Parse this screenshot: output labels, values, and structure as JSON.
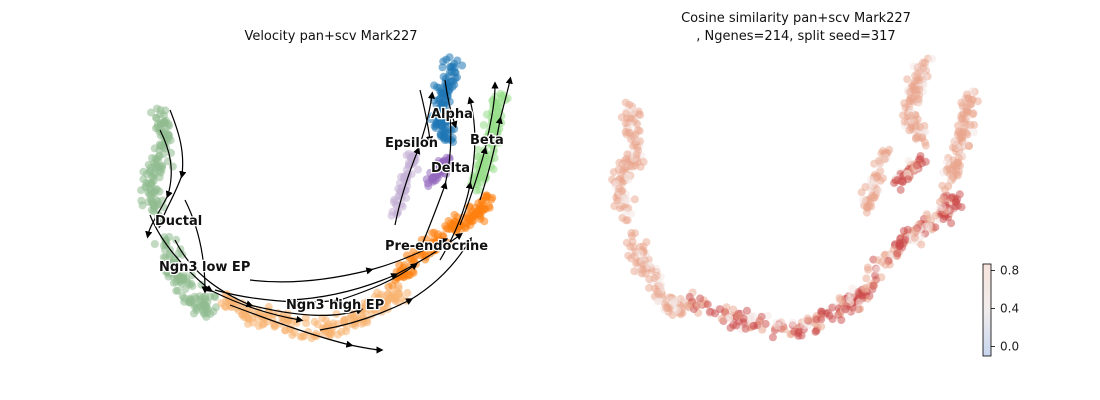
{
  "chart_data": [
    {
      "type": "scatter",
      "title": "Velocity pan+scv Mark227",
      "subtitle": "",
      "xlabel": "",
      "ylabel": "",
      "grid": false,
      "axes_visible": false,
      "overlay": "velocity-streamlines",
      "clusters": [
        {
          "name": "Alpha",
          "color": "#1f77b4"
        },
        {
          "name": "Beta",
          "color": "#98df8a"
        },
        {
          "name": "Epsilon",
          "color": "#c5b0d5"
        },
        {
          "name": "Delta",
          "color": "#9467bd"
        },
        {
          "name": "Ductal",
          "color": "#8fbc8f"
        },
        {
          "name": "Ngn3 low EP",
          "color": "#8fbc8f"
        },
        {
          "name": "Ngn3 high EP",
          "color": "#f7b26f"
        },
        {
          "name": "Pre-endocrine",
          "color": "#ff7f0e"
        }
      ],
      "cluster_label_color": "#111111"
    },
    {
      "type": "scatter",
      "title": "Cosine similarity pan+scv Mark227",
      "subtitle": ", Ngenes=214, split seed=317",
      "xlabel": "",
      "ylabel": "",
      "grid": false,
      "axes_visible": false,
      "colormap": "coolwarm",
      "colorbar": {
        "min": -0.1,
        "max": 0.87,
        "ticks": [
          0.0,
          0.4,
          0.8
        ],
        "tick_labels": [
          "0.0",
          "0.4",
          "0.8"
        ],
        "colors": [
          "#c8d6ef",
          "#f1ecec",
          "#f7e4dd"
        ]
      },
      "point_colors": {
        "low": "#f3e6e3",
        "mid": "#e9a58e",
        "high": "#cc4a4a"
      }
    }
  ]
}
